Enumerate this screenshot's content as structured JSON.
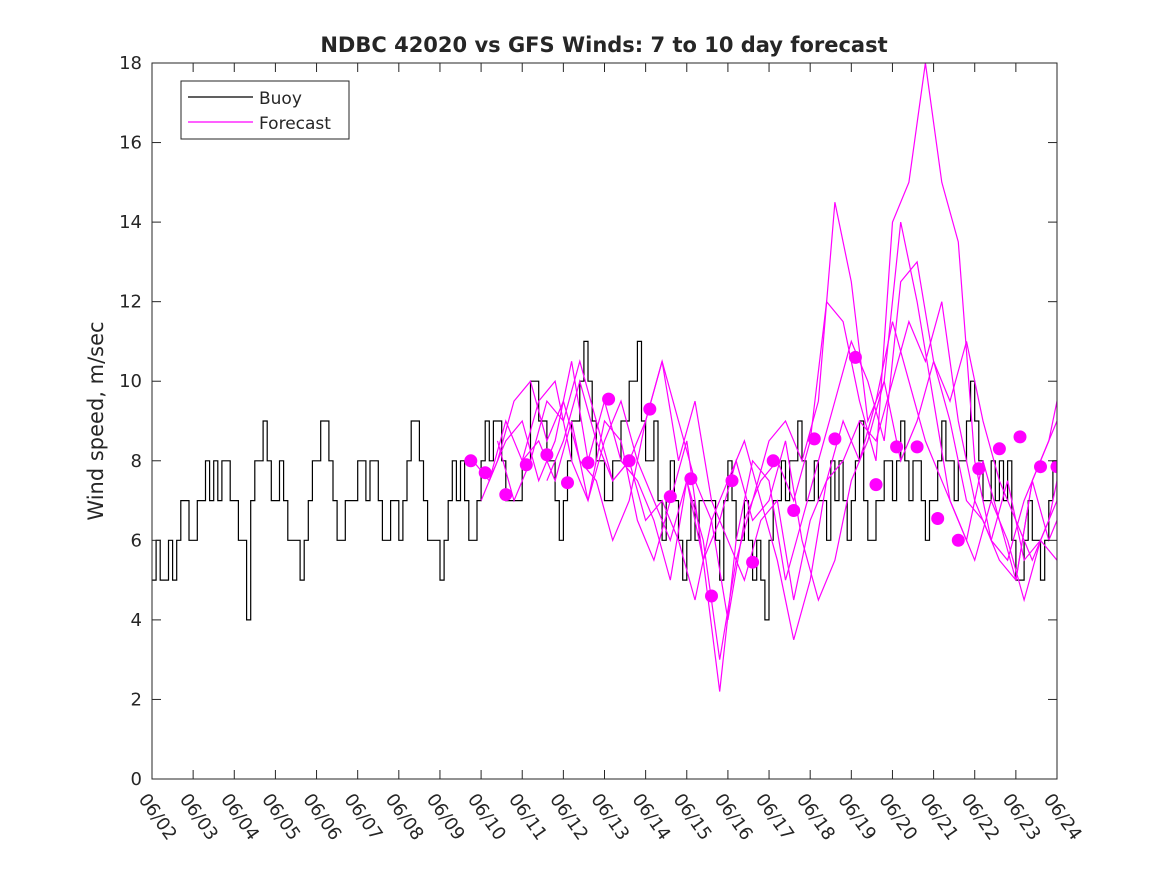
{
  "chart_data": {
    "type": "line",
    "title": "NDBC 42020 vs GFS Winds: 7 to 10 day forecast",
    "xlabel": "",
    "ylabel": "Wind speed, m/sec",
    "xlim": [
      "06/02",
      "06/24"
    ],
    "ylim": [
      0,
      18
    ],
    "x_tick_labels": [
      "06/02",
      "06/03",
      "06/04",
      "06/05",
      "06/06",
      "06/07",
      "06/08",
      "06/09",
      "06/10",
      "06/11",
      "06/12",
      "06/13",
      "06/14",
      "06/15",
      "06/16",
      "06/17",
      "06/18",
      "06/19",
      "06/20",
      "06/21",
      "06/22",
      "06/23",
      "06/24"
    ],
    "y_ticks": [
      0,
      2,
      4,
      6,
      8,
      10,
      12,
      14,
      16,
      18
    ],
    "grid": false,
    "legend": {
      "position": "top-left",
      "entries": [
        "Buoy",
        "Forecast"
      ]
    },
    "colors": {
      "buoy": "#000000",
      "forecast": "#ff00ff",
      "axes": "#262626"
    },
    "buoy": {
      "name": "Buoy",
      "day": [
        0.0,
        0.1,
        0.2,
        0.3,
        0.4,
        0.5,
        0.6,
        0.7,
        0.8,
        0.9,
        1.0,
        1.1,
        1.2,
        1.3,
        1.4,
        1.5,
        1.6,
        1.7,
        1.8,
        1.9,
        2.0,
        2.1,
        2.2,
        2.3,
        2.4,
        2.5,
        2.6,
        2.7,
        2.8,
        2.9,
        3.0,
        3.1,
        3.2,
        3.3,
        3.4,
        3.5,
        3.6,
        3.7,
        3.8,
        3.9,
        4.0,
        4.1,
        4.2,
        4.3,
        4.4,
        4.5,
        4.6,
        4.7,
        4.8,
        4.9,
        5.0,
        5.1,
        5.2,
        5.3,
        5.4,
        5.5,
        5.6,
        5.7,
        5.8,
        5.9,
        6.0,
        6.1,
        6.2,
        6.3,
        6.4,
        6.5,
        6.6,
        6.7,
        6.8,
        6.9,
        7.0,
        7.1,
        7.2,
        7.3,
        7.4,
        7.5,
        7.6,
        7.7,
        7.8,
        7.9,
        8.0,
        8.1,
        8.2,
        8.3,
        8.4,
        8.5,
        8.6,
        8.7,
        8.8,
        8.9,
        9.0,
        9.1,
        9.2,
        9.3,
        9.4,
        9.5,
        9.6,
        9.7,
        9.8,
        9.9,
        10.0,
        10.1,
        10.2,
        10.3,
        10.4,
        10.5,
        10.6,
        10.7,
        10.8,
        10.9,
        11.0,
        11.1,
        11.2,
        11.3,
        11.4,
        11.5,
        11.6,
        11.7,
        11.8,
        11.9,
        12.0,
        12.1,
        12.2,
        12.3,
        12.4,
        12.5,
        12.6,
        12.7,
        12.8,
        12.9,
        13.0,
        13.1,
        13.2,
        13.3,
        13.4,
        13.5,
        13.6,
        13.7,
        13.8,
        13.9,
        14.0,
        14.1,
        14.2,
        14.3,
        14.4,
        14.5,
        14.6,
        14.7,
        14.8,
        14.9,
        15.0,
        15.1,
        15.2,
        15.3,
        15.4,
        15.5,
        15.6,
        15.7,
        15.8,
        15.9,
        16.0,
        16.1,
        16.2,
        16.3,
        16.4,
        16.5,
        16.6,
        16.7,
        16.8,
        16.9,
        17.0,
        17.1,
        17.2,
        17.3,
        17.4,
        17.5,
        17.6,
        17.7,
        17.8,
        17.9,
        18.0,
        18.1,
        18.2,
        18.3,
        18.4,
        18.5,
        18.6,
        18.7,
        18.8,
        18.9,
        19.0,
        19.1,
        19.2,
        19.3,
        19.4,
        19.5,
        19.6,
        19.7,
        19.8,
        19.9,
        20.0,
        20.1,
        20.2,
        20.3,
        20.4,
        20.5,
        20.6,
        20.7,
        20.8,
        20.9,
        21.0,
        21.1,
        21.2,
        21.3,
        21.4,
        21.5,
        21.6,
        21.7,
        21.8,
        21.9,
        22.0
      ],
      "speed": [
        5,
        6,
        5,
        5,
        6,
        5,
        6,
        7,
        7,
        6,
        6,
        7,
        7,
        8,
        7,
        8,
        7,
        8,
        8,
        7,
        7,
        6,
        6,
        4,
        7,
        8,
        8,
        9,
        8,
        7,
        7,
        8,
        7,
        6,
        6,
        6,
        5,
        6,
        7,
        8,
        8,
        9,
        9,
        8,
        7,
        6,
        6,
        7,
        7,
        7,
        8,
        8,
        7,
        8,
        8,
        7,
        6,
        6,
        7,
        7,
        6,
        7,
        8,
        9,
        9,
        8,
        7,
        6,
        6,
        6,
        5,
        6,
        7,
        8,
        7,
        8,
        7,
        6,
        6,
        7,
        8,
        9,
        8,
        9,
        9,
        8,
        7,
        7,
        7,
        7,
        8,
        8,
        10,
        10,
        9,
        9,
        8,
        8,
        7,
        6,
        7,
        8,
        9,
        9,
        10,
        11,
        10,
        9,
        8,
        8,
        7,
        7,
        8,
        8,
        9,
        9,
        10,
        10,
        11,
        9,
        8,
        8,
        9,
        7,
        6,
        7,
        8,
        7,
        6,
        5,
        6,
        7,
        6,
        7,
        7,
        7,
        7,
        6,
        5,
        7,
        8,
        7,
        6,
        6,
        7,
        6,
        5,
        6,
        5,
        4,
        6,
        7,
        7,
        8,
        7,
        8,
        8,
        9,
        8,
        7,
        7,
        8,
        7,
        7,
        6,
        8,
        7,
        8,
        7,
        6,
        7,
        8,
        9,
        7,
        6,
        6,
        7,
        7,
        8,
        8,
        7,
        8,
        9,
        8,
        7,
        8,
        8,
        7,
        6,
        7,
        7,
        8,
        9,
        8,
        8,
        7,
        8,
        8,
        9,
        10,
        9,
        8,
        7,
        7,
        8,
        7,
        8,
        7,
        8,
        6,
        5,
        5,
        6,
        7,
        6,
        6,
        5,
        6,
        7,
        8,
        7,
        6,
        5,
        5,
        6,
        7,
        6,
        7
      ]
    },
    "forecast_markers": {
      "day": [
        7.75,
        8.1,
        8.6,
        9.1,
        9.6,
        10.1,
        10.6,
        11.1,
        11.6,
        12.1,
        12.6,
        13.1,
        13.6,
        14.1,
        14.6,
        15.1,
        15.6,
        16.1,
        16.6,
        17.1,
        17.6,
        18.1,
        18.6,
        19.1,
        19.6,
        20.1,
        20.6,
        21.1,
        21.6,
        22.0
      ],
      "speed": [
        8.0,
        7.7,
        7.15,
        7.9,
        8.15,
        7.45,
        7.95,
        9.55,
        8.0,
        9.3,
        7.1,
        7.55,
        4.6,
        7.5,
        5.45,
        8.0,
        6.75,
        8.55,
        8.55,
        10.6,
        7.4,
        8.35,
        8.35,
        6.55,
        6.0,
        7.8,
        8.3,
        8.6,
        7.85,
        7.85
      ]
    },
    "forecast_series": [
      {
        "day": [
          7.8,
          8.2,
          8.6,
          9.0,
          9.4,
          9.8,
          10.2,
          10.6,
          11.0,
          11.4,
          11.8,
          12.2,
          12.6,
          13.0,
          13.4,
          13.8,
          14.2,
          14.6,
          15.0,
          15.4,
          15.8,
          16.2,
          16.6,
          17.0,
          17.4,
          17.8,
          18.2,
          18.6,
          19.0,
          19.4,
          19.8,
          20.2,
          20.6,
          21.0,
          21.4,
          21.8,
          22.0
        ],
        "speed": [
          8.0,
          7.5,
          8.5,
          9.0,
          7.5,
          8.5,
          10.5,
          8.0,
          9.5,
          8.0,
          7.5,
          6.5,
          5.0,
          7.5,
          6.0,
          3.0,
          5.5,
          7.0,
          8.5,
          9.0,
          8.0,
          9.5,
          14.5,
          12.5,
          9.0,
          10.0,
          14.0,
          12.0,
          9.5,
          7.0,
          6.0,
          8.0,
          6.5,
          5.0,
          7.5,
          8.5,
          9.5
        ]
      },
      {
        "day": [
          8.0,
          8.4,
          8.8,
          9.2,
          9.6,
          10.0,
          10.4,
          10.8,
          11.2,
          11.6,
          12.0,
          12.4,
          12.8,
          13.2,
          13.6,
          14.0,
          14.4,
          14.8,
          15.2,
          15.6,
          16.0,
          16.4,
          16.8,
          17.2,
          17.6,
          18.0,
          18.4,
          18.8,
          19.2,
          19.6,
          20.0,
          20.4,
          20.8,
          21.2,
          21.6,
          22.0
        ],
        "speed": [
          7.0,
          8.0,
          9.5,
          10.0,
          8.5,
          9.5,
          8.0,
          7.5,
          6.0,
          7.0,
          9.0,
          10.5,
          9.0,
          7.5,
          6.5,
          4.0,
          6.5,
          7.5,
          8.0,
          7.0,
          8.5,
          12.0,
          11.5,
          9.5,
          8.0,
          14.0,
          15.0,
          18.0,
          15.0,
          13.5,
          8.0,
          6.0,
          5.5,
          7.0,
          8.0,
          9.0
        ]
      },
      {
        "day": [
          8.2,
          8.6,
          9.0,
          9.4,
          9.8,
          10.2,
          10.6,
          11.0,
          11.4,
          11.8,
          12.2,
          12.6,
          13.0,
          13.4,
          13.8,
          14.2,
          14.6,
          15.0,
          15.4,
          15.8,
          16.2,
          16.6,
          17.0,
          17.4,
          17.8,
          18.2,
          18.6,
          19.0,
          19.4,
          19.8,
          20.2,
          20.6,
          21.0,
          21.4,
          21.8,
          22.0
        ],
        "speed": [
          7.5,
          9.0,
          8.0,
          9.5,
          10.0,
          8.0,
          7.0,
          9.0,
          8.5,
          6.5,
          5.5,
          7.0,
          8.5,
          5.5,
          2.2,
          6.0,
          8.0,
          7.5,
          5.0,
          6.5,
          8.0,
          9.5,
          11.0,
          10.0,
          8.5,
          12.5,
          13.0,
          10.5,
          9.0,
          7.0,
          6.5,
          5.5,
          5.0,
          7.5,
          6.0,
          6.5
        ]
      },
      {
        "day": [
          8.4,
          8.8,
          9.2,
          9.6,
          10.0,
          10.4,
          10.8,
          11.2,
          11.6,
          12.0,
          12.4,
          12.8,
          13.2,
          13.6,
          14.0,
          14.4,
          14.8,
          15.2,
          15.6,
          16.0,
          16.4,
          16.8,
          17.2,
          17.6,
          18.0,
          18.4,
          18.8,
          19.2,
          19.6,
          20.0,
          20.4,
          20.8,
          21.2,
          21.6,
          22.0
        ],
        "speed": [
          8.5,
          7.0,
          8.0,
          9.5,
          9.0,
          10.5,
          9.0,
          7.5,
          8.0,
          6.5,
          7.0,
          6.0,
          4.5,
          6.5,
          7.5,
          8.5,
          7.0,
          5.5,
          3.5,
          5.0,
          7.5,
          9.0,
          8.0,
          9.5,
          11.5,
          10.0,
          8.5,
          7.5,
          6.5,
          5.5,
          7.0,
          6.0,
          4.5,
          6.0,
          7.0
        ]
      },
      {
        "day": [
          9.0,
          9.4,
          9.8,
          10.2,
          10.6,
          11.0,
          11.4,
          11.8,
          12.2,
          12.6,
          13.0,
          13.4,
          13.8,
          14.2,
          14.6,
          15.0,
          15.4,
          15.8,
          16.2,
          16.6,
          17.0,
          17.4,
          17.8,
          18.2,
          18.6,
          19.0,
          19.4,
          19.8,
          20.2,
          20.6,
          21.0,
          21.4,
          21.8,
          22.0
        ],
        "speed": [
          8.0,
          8.5,
          7.5,
          9.0,
          7.0,
          8.5,
          9.5,
          8.0,
          7.0,
          6.0,
          7.5,
          5.5,
          6.5,
          8.0,
          6.5,
          7.0,
          8.5,
          6.0,
          4.5,
          5.5,
          7.5,
          8.5,
          10.0,
          8.0,
          9.0,
          10.5,
          9.5,
          11.0,
          9.0,
          7.5,
          6.5,
          5.5,
          6.5,
          7.5
        ]
      },
      {
        "day": [
          9.6,
          10.0,
          10.4,
          10.8,
          11.2,
          11.6,
          12.0,
          12.4,
          12.8,
          13.2,
          13.6,
          14.0,
          14.4,
          14.8,
          15.2,
          15.6,
          16.0,
          16.4,
          16.8,
          17.2,
          17.6,
          18.0,
          18.4,
          18.8,
          19.2,
          19.6,
          20.0,
          20.4,
          20.8,
          21.2,
          21.6,
          22.0
        ],
        "speed": [
          7.5,
          8.5,
          10.0,
          8.5,
          7.5,
          8.0,
          9.0,
          10.5,
          8.0,
          9.5,
          7.0,
          6.0,
          5.0,
          6.5,
          7.0,
          4.5,
          6.5,
          7.5,
          8.0,
          9.0,
          8.5,
          10.0,
          11.5,
          10.5,
          12.0,
          9.0,
          7.0,
          6.0,
          7.5,
          5.5,
          6.0,
          5.5
        ]
      }
    ]
  }
}
